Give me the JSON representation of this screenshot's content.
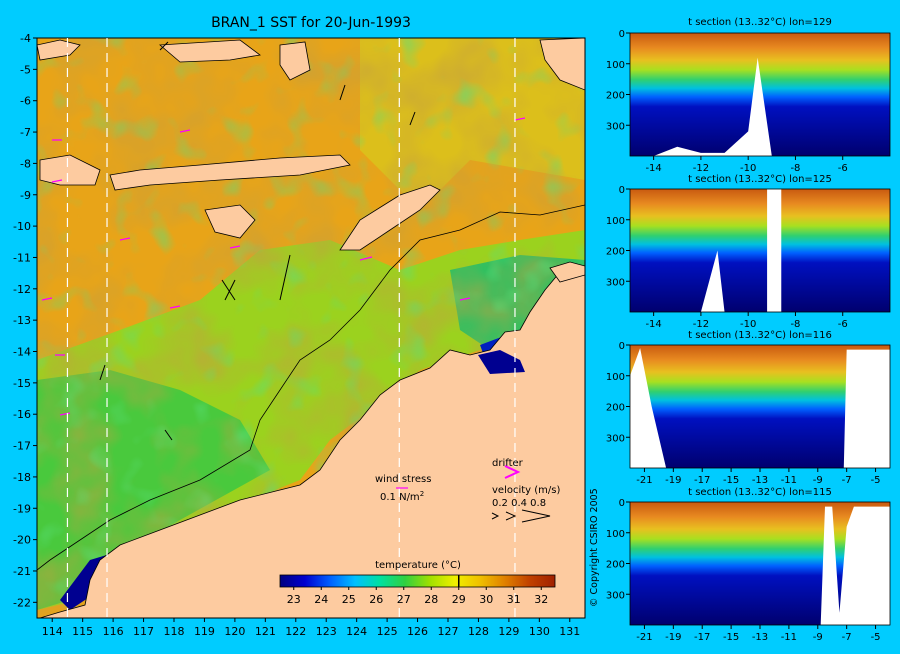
{
  "chart_data": [
    {
      "type": "heatmap",
      "title": "BRAN_1 SST for 20-Jun-1993",
      "xlim": [
        113.5,
        131.5
      ],
      "ylim": [
        -22.5,
        -4
      ],
      "x_ticks": [
        "114",
        "115",
        "116",
        "117",
        "118",
        "119",
        "120",
        "121",
        "122",
        "123",
        "124",
        "125",
        "126",
        "127",
        "128",
        "129",
        "130",
        "131"
      ],
      "y_ticks": [
        "-4",
        "-5",
        "-6",
        "-7",
        "-8",
        "-9",
        "-10",
        "-11",
        "-12",
        "-13",
        "-14",
        "-15",
        "-16",
        "-17",
        "-18",
        "-19",
        "-20",
        "-21",
        "-22"
      ],
      "section_longitudes": [
        114.5,
        115.8,
        125.4,
        129.2
      ],
      "legend": {
        "wind_label": "wind stress",
        "wind_scale": "0.1 N/m",
        "wind_scale_sup": "2",
        "drifter_label": "drifter",
        "velocity_label": "velocity (m/s)",
        "velocity_values": "0.2 0.4 0.8"
      },
      "colorbar": {
        "label": "temperature (°C)",
        "min": 22.5,
        "max": 32.5,
        "ticks": [
          "23",
          "24",
          "25",
          "26",
          "27",
          "28",
          "29",
          "30",
          "31",
          "32"
        ],
        "marker": 29,
        "colors": [
          "#000080",
          "#0000d0",
          "#0060ff",
          "#00c0ff",
          "#00e0a0",
          "#30d040",
          "#a0e000",
          "#f0f000",
          "#f0c000",
          "#e08000",
          "#c04000",
          "#a02000"
        ]
      }
    },
    {
      "type": "heatmap",
      "title": "t section (13..32°C) lon=129",
      "xlim": [
        -15,
        -4
      ],
      "ylim": [
        0,
        400
      ],
      "x_ticks": [
        "-14",
        "-12",
        "-10",
        "-8",
        "-6"
      ],
      "y_ticks": [
        "0",
        "100",
        "200",
        "300"
      ],
      "depth_profile": [
        [
          -15,
          400
        ],
        [
          -14,
          400
        ],
        [
          -13,
          370
        ],
        [
          -12,
          390
        ],
        [
          -11,
          390
        ],
        [
          -10,
          320
        ],
        [
          -9.6,
          80
        ],
        [
          -9,
          400
        ],
        [
          -4,
          400
        ]
      ],
      "profile_gaps": []
    },
    {
      "type": "heatmap",
      "title": "t section (13..32°C) lon=125",
      "xlim": [
        -15,
        -4
      ],
      "ylim": [
        0,
        400
      ],
      "x_ticks": [
        "-14",
        "-12",
        "-10",
        "-8",
        "-6"
      ],
      "y_ticks": [
        "0",
        "100",
        "200",
        "300"
      ],
      "depth_profile": [
        [
          -15,
          400
        ],
        [
          -14,
          400
        ],
        [
          -13,
          400
        ],
        [
          -12,
          400
        ],
        [
          -11.3,
          200
        ],
        [
          -11,
          400
        ],
        [
          -4,
          400
        ]
      ],
      "profile_gaps": [
        [
          -9.2,
          -8.6
        ]
      ]
    },
    {
      "type": "heatmap",
      "title": "t section (13..32°C) lon=116",
      "xlim": [
        -22,
        -4
      ],
      "ylim": [
        0,
        400
      ],
      "x_ticks": [
        "-21",
        "-19",
        "-17",
        "-15",
        "-13",
        "-11",
        "-9",
        "-7",
        "-5"
      ],
      "y_ticks": [
        "0",
        "100",
        "200",
        "300"
      ],
      "depth_profile": [
        [
          -22,
          100
        ],
        [
          -21.3,
          10
        ],
        [
          -20.5,
          200
        ],
        [
          -19.5,
          400
        ],
        [
          -7.2,
          400
        ],
        [
          -7,
          15
        ],
        [
          -4,
          15
        ]
      ],
      "profile_gaps": []
    },
    {
      "type": "heatmap",
      "title": "t section (13..32°C) lon=115",
      "xlim": [
        -22,
        -4
      ],
      "ylim": [
        0,
        400
      ],
      "x_ticks": [
        "-21",
        "-19",
        "-17",
        "-15",
        "-13",
        "-11",
        "-9",
        "-7",
        "-5"
      ],
      "y_ticks": [
        "0",
        "100",
        "200",
        "300"
      ],
      "depth_profile": [
        [
          -22,
          400
        ],
        [
          -21,
          400
        ],
        [
          -19,
          400
        ],
        [
          -8.8,
          400
        ],
        [
          -8.5,
          15
        ],
        [
          -8,
          15
        ],
        [
          -7.5,
          360
        ],
        [
          -7,
          80
        ],
        [
          -6.5,
          15
        ],
        [
          -4,
          15
        ]
      ],
      "profile_gaps": []
    }
  ],
  "copyright": "© Copyright CSIRO 2005"
}
